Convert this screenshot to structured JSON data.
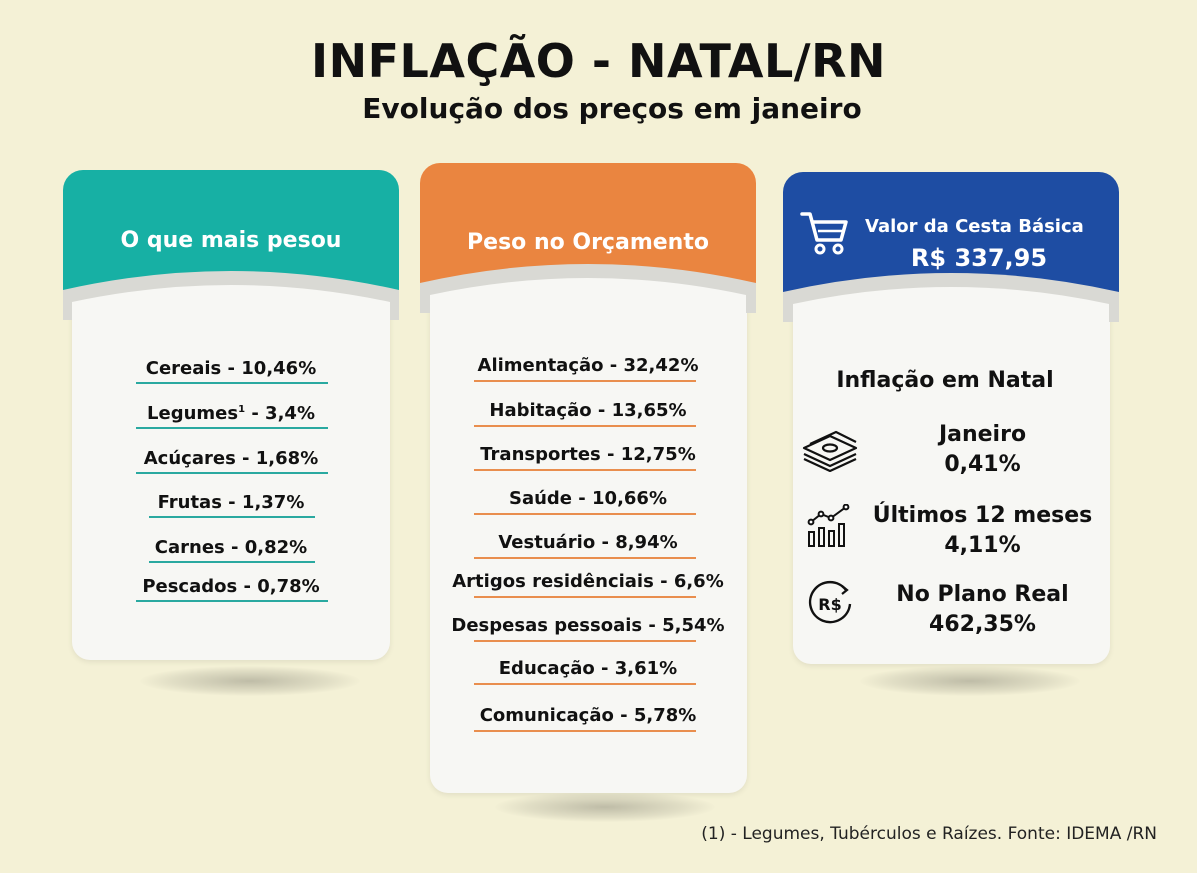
{
  "title": "INFLAÇÃO - NATAL/RN",
  "subtitle": "Evolução dos preços em janeiro",
  "colors": {
    "teal": "#17b0a4",
    "orange": "#ea8540",
    "blue": "#1e4da3",
    "background": "#f4f1d6"
  },
  "left_card": {
    "header": "O que mais pesou",
    "items": [
      {
        "label": "Cereais - 10,46%"
      },
      {
        "label": "Legumes",
        "sup": "1",
        "suffix": " - 3,4%"
      },
      {
        "label": "Acúçares - 1,68%"
      },
      {
        "label": "Frutas - 1,37%"
      },
      {
        "label": "Carnes - 0,82%"
      },
      {
        "label": "Pescados - 0,78%"
      }
    ]
  },
  "middle_card": {
    "header": "Peso no Orçamento",
    "items": [
      "Alimentação - 32,42%",
      "Habitação - 13,65%",
      "Transportes - 12,75%",
      "Saúde - 10,66%",
      "Vestuário - 8,94%",
      "Artigos residênciais - 6,6%",
      "Despesas pessoais - 5,54%",
      "Educação - 3,61%",
      "Comunicação - 5,78%"
    ]
  },
  "right_card": {
    "header_label": "Valor da Cesta Básica",
    "header_value": "R$ 337,95",
    "section_title": "Inflação em Natal",
    "stats": [
      {
        "label": "Janeiro",
        "value": "0,41%",
        "icon": "money-stack-icon"
      },
      {
        "label": "Últimos 12 meses",
        "value": "4,11%",
        "icon": "growth-chart-icon"
      },
      {
        "label": "No Plano Real",
        "value": "462,35%",
        "icon": "real-coin-icon"
      }
    ]
  },
  "footer": "(1) - Legumes, Tubérculos e Raízes. Fonte: IDEMA /RN"
}
